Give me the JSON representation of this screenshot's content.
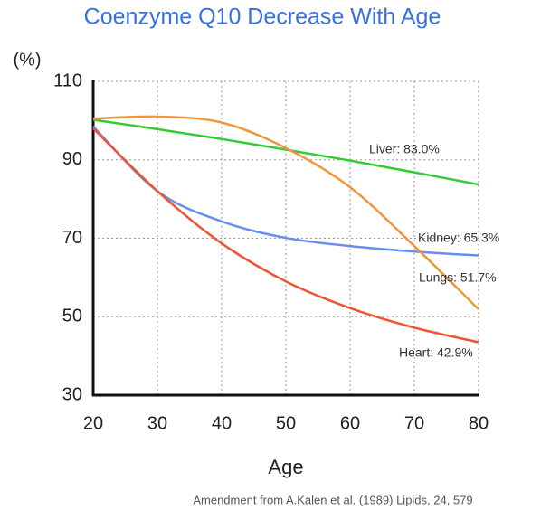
{
  "chart_data": {
    "type": "line",
    "title": "Coenzyme Q10 Decrease With Age",
    "y_label": "(%)",
    "x_label": "Age",
    "source": "Amendment from A.Kalen et al. (1989) Lipids, 24, 579",
    "x": [
      20,
      30,
      40,
      50,
      60,
      70,
      80
    ],
    "xlim": [
      20,
      80
    ],
    "xticks": [
      20,
      30,
      40,
      50,
      60,
      70,
      80
    ],
    "ylim": [
      30,
      110
    ],
    "yticks": [
      30,
      50,
      70,
      90,
      110
    ],
    "grid": true,
    "series": [
      {
        "name": "Liver: 83.0%",
        "color": "#33cc33",
        "values": [
          100.2,
          97.8,
          95.3,
          92.6,
          89.8,
          86.8,
          83.7
        ]
      },
      {
        "name": "Kidney: 65.3%",
        "color": "#6b8cf0",
        "values": [
          98.5,
          82,
          74.3,
          70.1,
          68,
          66.6,
          65.6
        ]
      },
      {
        "name": "Lungs: 51.7%",
        "color": "#f0953a",
        "values": [
          100.5,
          101,
          99.5,
          93,
          83,
          68,
          51.9
        ]
      },
      {
        "name": "Heart: 42.9%",
        "color": "#ee5533",
        "values": [
          98,
          82,
          68.7,
          59,
          52.2,
          47.2,
          43.5
        ]
      }
    ]
  }
}
